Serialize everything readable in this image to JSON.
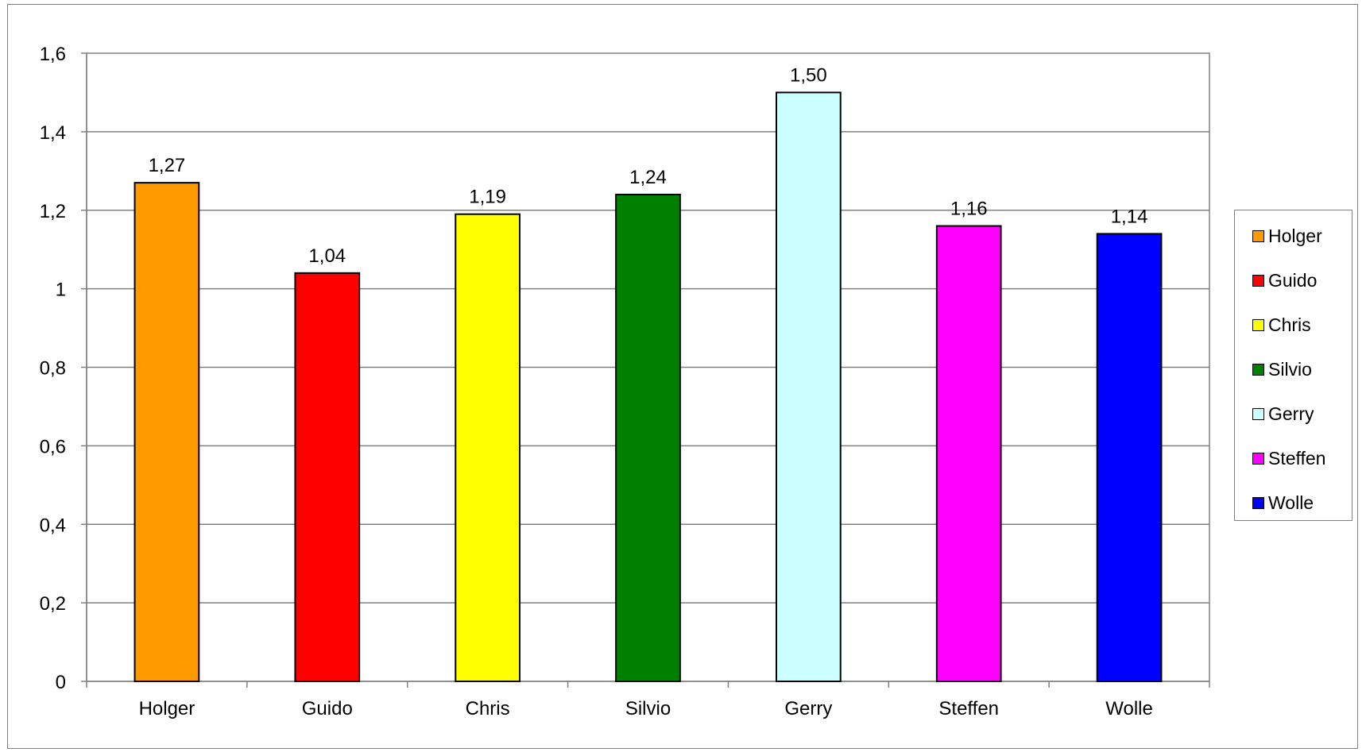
{
  "chart_data": {
    "type": "bar",
    "categories": [
      "Holger",
      "Guido",
      "Chris",
      "Silvio",
      "Gerry",
      "Steffen",
      "Wolle"
    ],
    "values": [
      1.27,
      1.04,
      1.19,
      1.24,
      1.5,
      1.16,
      1.14
    ],
    "value_labels": [
      "1,27",
      "1,04",
      "1,19",
      "1,24",
      "1,50",
      "1,16",
      "1,14"
    ],
    "colors": [
      "#FF9900",
      "#FF0000",
      "#FFFF00",
      "#008000",
      "#CCFFFF",
      "#FF00FF",
      "#0000FF"
    ],
    "ylim": [
      0,
      1.6
    ],
    "yticks": [
      0,
      0.2,
      0.4,
      0.6,
      0.8,
      1,
      1.2,
      1.4,
      1.6
    ],
    "ytick_labels": [
      "0",
      "0,2",
      "0,4",
      "0,6",
      "0,8",
      "1",
      "1,2",
      "1,4",
      "1,6"
    ],
    "grid": true,
    "legend": {
      "position": "right",
      "entries": [
        "Holger",
        "Guido",
        "Chris",
        "Silvio",
        "Gerry",
        "Steffen",
        "Wolle"
      ]
    },
    "title": "",
    "xlabel": "",
    "ylabel": ""
  }
}
